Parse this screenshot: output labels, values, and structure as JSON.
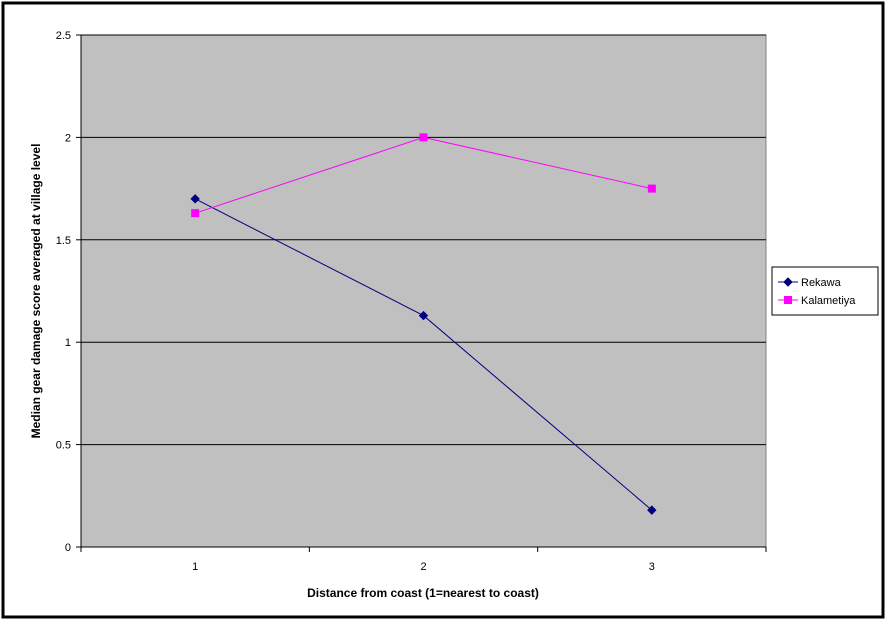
{
  "chart_data": {
    "type": "line",
    "title": "",
    "xlabel": "Distance from coast (1=nearest to coast)",
    "ylabel": "Median gear damage score averaged at village level",
    "categories": [
      "1",
      "2",
      "3"
    ],
    "ylim": [
      0,
      2.5
    ],
    "yticks": [
      "0",
      "0.5",
      "1",
      "1.5",
      "2",
      "2.5"
    ],
    "grid": "horizontal major gridlines",
    "legend_position": "right",
    "plot_background": "#c0c0c0",
    "series": [
      {
        "name": "Rekawa",
        "color": "#000080",
        "marker": "diamond",
        "values": [
          1.7,
          1.13,
          0.18
        ]
      },
      {
        "name": "Kalametiya",
        "color": "#ff00ff",
        "marker": "square",
        "values": [
          1.63,
          2.0,
          1.75
        ]
      }
    ]
  }
}
